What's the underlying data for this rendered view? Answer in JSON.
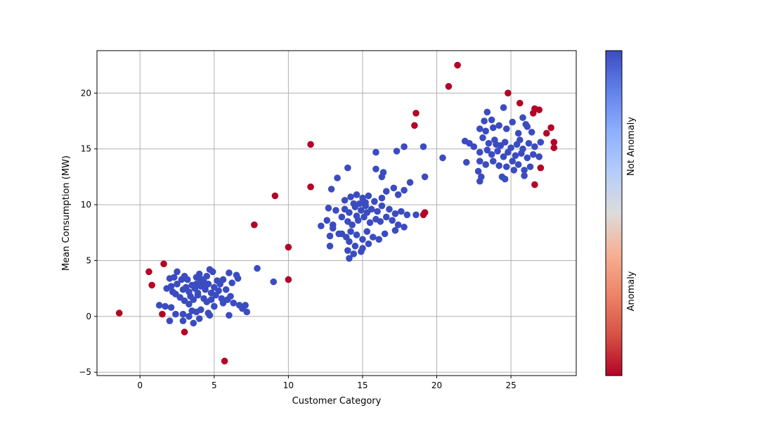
{
  "chart_data": {
    "type": "scatter",
    "xlabel": "Customer Category",
    "ylabel": "Mean Consumption (MW)",
    "xlim": [
      -2.9,
      29.4
    ],
    "ylim": [
      -5.3,
      23.8
    ],
    "xticks": [
      0,
      5,
      10,
      15,
      20,
      25
    ],
    "yticks": [
      -5,
      0,
      5,
      10,
      15,
      20
    ],
    "grid": true,
    "colorbar": {
      "colormap": "coolwarm",
      "position": "right",
      "labels": [
        {
          "text": "Anomaly",
          "value": 0.25
        },
        {
          "text": "Not Anomaly",
          "value": 0.75
        }
      ]
    },
    "colors": {
      "not_anomaly": "#3b4cc0",
      "anomaly": "#b40426"
    },
    "series": [
      {
        "label_value": "not_anomaly",
        "points": [
          [
            2.3,
            3.5
          ],
          [
            2.5,
            4.0
          ],
          [
            2.8,
            3.3
          ],
          [
            3.0,
            3.6
          ],
          [
            3.5,
            2.8
          ],
          [
            3.8,
            3.5
          ],
          [
            4.0,
            3.8
          ],
          [
            4.2,
            3.3
          ],
          [
            4.5,
            3.6
          ],
          [
            4.7,
            4.2
          ],
          [
            4.9,
            4.0
          ],
          [
            5.2,
            3.2
          ],
          [
            5.4,
            2.9
          ],
          [
            5.6,
            3.3
          ],
          [
            6.0,
            3.9
          ],
          [
            6.2,
            3.0
          ],
          [
            6.5,
            3.7
          ],
          [
            6.6,
            3.4
          ],
          [
            3.2,
            3.3
          ],
          [
            2.0,
            3.4
          ],
          [
            2.1,
            2.7
          ],
          [
            2.5,
            2.9
          ],
          [
            2.9,
            2.4
          ],
          [
            3.1,
            2.6
          ],
          [
            3.3,
            2.2
          ],
          [
            3.7,
            2.5
          ],
          [
            3.9,
            2.1
          ],
          [
            4.1,
            2.7
          ],
          [
            4.4,
            2.4
          ],
          [
            4.6,
            2.9
          ],
          [
            4.8,
            2.1
          ],
          [
            5.0,
            2.6
          ],
          [
            5.3,
            2.3
          ],
          [
            5.8,
            2.4
          ],
          [
            6.1,
            1.8
          ],
          [
            1.8,
            2.5
          ],
          [
            2.2,
            2.2
          ],
          [
            2.4,
            2.0
          ],
          [
            2.7,
            1.7
          ],
          [
            3.0,
            1.4
          ],
          [
            3.4,
            1.8
          ],
          [
            3.6,
            1.5
          ],
          [
            3.9,
            1.9
          ],
          [
            4.3,
            1.6
          ],
          [
            4.5,
            1.3
          ],
          [
            4.8,
            1.5
          ],
          [
            5.1,
            1.9
          ],
          [
            5.5,
            1.6
          ],
          [
            5.9,
            1.5
          ],
          [
            6.3,
            1.2
          ],
          [
            6.7,
            1.0
          ],
          [
            6.9,
            0.7
          ],
          [
            7.1,
            1.0
          ],
          [
            7.2,
            0.4
          ],
          [
            1.3,
            1.0
          ],
          [
            1.7,
            0.9
          ],
          [
            2.1,
            0.8
          ],
          [
            2.4,
            0.2
          ],
          [
            2.9,
            0.2
          ],
          [
            3.3,
            0.0
          ],
          [
            3.5,
            0.5
          ],
          [
            3.8,
            0.4
          ],
          [
            4.1,
            0.6
          ],
          [
            4.6,
            0.3
          ],
          [
            4.7,
            0.1
          ],
          [
            5.0,
            0.9
          ],
          [
            5.6,
            1.2
          ],
          [
            6.0,
            0.1
          ],
          [
            2.0,
            -0.4
          ],
          [
            2.9,
            -0.4
          ],
          [
            3.6,
            -0.6
          ],
          [
            4.0,
            -0.2
          ],
          [
            4.3,
            3.1
          ],
          [
            3.3,
            1.1
          ],
          [
            7.9,
            4.3
          ],
          [
            9.0,
            3.1
          ],
          [
            4.2,
            3.0
          ],
          [
            3.8,
            2.9
          ],
          [
            4.1,
            3.2
          ],
          [
            4.4,
            2.7
          ],
          [
            14.0,
            13.3
          ],
          [
            13.3,
            12.4
          ],
          [
            12.9,
            11.4
          ],
          [
            13.8,
            10.4
          ],
          [
            14.2,
            10.7
          ],
          [
            14.6,
            10.9
          ],
          [
            15.0,
            10.6
          ],
          [
            15.4,
            10.8
          ],
          [
            15.8,
            10.3
          ],
          [
            16.3,
            10.6
          ],
          [
            16.6,
            11.2
          ],
          [
            17.1,
            11.5
          ],
          [
            17.4,
            10.9
          ],
          [
            17.8,
            11.3
          ],
          [
            18.2,
            12.0
          ],
          [
            16.4,
            12.9
          ],
          [
            15.9,
            13.2
          ],
          [
            14.4,
            10.1
          ],
          [
            13.8,
            9.6
          ],
          [
            14.1,
            9.3
          ],
          [
            14.5,
            9.8
          ],
          [
            14.9,
            9.5
          ],
          [
            15.2,
            9.9
          ],
          [
            15.6,
            9.6
          ],
          [
            16.0,
            9.4
          ],
          [
            16.3,
            9.9
          ],
          [
            16.8,
            9.6
          ],
          [
            17.2,
            9.2
          ],
          [
            17.6,
            9.4
          ],
          [
            18.0,
            9.1
          ],
          [
            12.7,
            9.7
          ],
          [
            13.2,
            9.5
          ],
          [
            13.6,
            8.9
          ],
          [
            14.0,
            8.5
          ],
          [
            14.3,
            8.2
          ],
          [
            14.7,
            8.6
          ],
          [
            15.1,
            8.9
          ],
          [
            15.5,
            8.4
          ],
          [
            15.9,
            8.7
          ],
          [
            16.2,
            8.5
          ],
          [
            16.6,
            8.9
          ],
          [
            17.0,
            8.6
          ],
          [
            17.4,
            8.2
          ],
          [
            17.8,
            8.0
          ],
          [
            18.6,
            9.1
          ],
          [
            12.2,
            8.1
          ],
          [
            12.6,
            8.6
          ],
          [
            13.0,
            8.2
          ],
          [
            13.4,
            7.4
          ],
          [
            13.9,
            7.1
          ],
          [
            14.2,
            7.6
          ],
          [
            14.6,
            7.3
          ],
          [
            15.0,
            6.9
          ],
          [
            15.3,
            7.6
          ],
          [
            15.7,
            7.1
          ],
          [
            16.1,
            6.9
          ],
          [
            16.5,
            7.4
          ],
          [
            17.2,
            7.7
          ],
          [
            12.8,
            7.2
          ],
          [
            13.6,
            7.4
          ],
          [
            14.1,
            6.7
          ],
          [
            14.5,
            6.3
          ],
          [
            15.0,
            6.1
          ],
          [
            15.4,
            6.5
          ],
          [
            14.0,
            5.9
          ],
          [
            14.4,
            5.6
          ],
          [
            14.1,
            5.2
          ],
          [
            14.9,
            5.8
          ],
          [
            12.8,
            6.3
          ],
          [
            17.8,
            15.2
          ],
          [
            17.3,
            14.8
          ],
          [
            15.9,
            14.7
          ],
          [
            19.1,
            15.2
          ],
          [
            19.2,
            12.5
          ],
          [
            16.3,
            12.5
          ],
          [
            13.0,
            7.9
          ],
          [
            14.8,
            10.1
          ],
          [
            15.3,
            9.3
          ],
          [
            14.6,
            9.0
          ],
          [
            15.2,
            10.2
          ],
          [
            23.4,
            18.3
          ],
          [
            24.5,
            18.7
          ],
          [
            23.7,
            17.6
          ],
          [
            23.2,
            17.5
          ],
          [
            22.9,
            16.8
          ],
          [
            23.3,
            16.6
          ],
          [
            23.8,
            16.9
          ],
          [
            24.2,
            17.1
          ],
          [
            24.7,
            16.8
          ],
          [
            25.1,
            17.4
          ],
          [
            25.5,
            16.4
          ],
          [
            25.8,
            17.8
          ],
          [
            26.0,
            17.2
          ],
          [
            26.4,
            16.5
          ],
          [
            23.1,
            16.0
          ],
          [
            23.5,
            15.5
          ],
          [
            23.9,
            15.8
          ],
          [
            24.3,
            15.3
          ],
          [
            24.6,
            15.6
          ],
          [
            25.0,
            15.1
          ],
          [
            25.4,
            15.4
          ],
          [
            25.8,
            15.0
          ],
          [
            26.2,
            15.5
          ],
          [
            26.6,
            15.2
          ],
          [
            27.0,
            15.6
          ],
          [
            22.2,
            15.5
          ],
          [
            22.5,
            15.2
          ],
          [
            22.9,
            14.7
          ],
          [
            23.4,
            14.9
          ],
          [
            23.7,
            14.5
          ],
          [
            24.1,
            14.8
          ],
          [
            24.5,
            14.3
          ],
          [
            24.8,
            14.7
          ],
          [
            25.3,
            14.4
          ],
          [
            25.7,
            14.6
          ],
          [
            26.1,
            14.2
          ],
          [
            26.5,
            14.5
          ],
          [
            26.9,
            14.3
          ],
          [
            22.9,
            13.9
          ],
          [
            23.3,
            13.6
          ],
          [
            23.8,
            13.9
          ],
          [
            24.2,
            13.5
          ],
          [
            24.7,
            13.4
          ],
          [
            25.1,
            13.9
          ],
          [
            25.5,
            13.6
          ],
          [
            25.9,
            13.1
          ],
          [
            26.3,
            13.4
          ],
          [
            22.8,
            13.0
          ],
          [
            23.0,
            12.5
          ],
          [
            24.4,
            12.5
          ],
          [
            24.6,
            12.3
          ],
          [
            25.2,
            13.1
          ],
          [
            25.9,
            12.6
          ],
          [
            22.9,
            12.1
          ],
          [
            21.9,
            15.7
          ],
          [
            22.0,
            13.8
          ],
          [
            20.4,
            14.2
          ],
          [
            26.1,
            17.0
          ],
          [
            24.0,
            15.4
          ],
          [
            25.6,
            15.8
          ]
        ]
      },
      {
        "label_value": "anomaly",
        "points": [
          [
            -1.4,
            0.3
          ],
          [
            0.6,
            4.0
          ],
          [
            0.8,
            2.8
          ],
          [
            1.6,
            4.7
          ],
          [
            1.5,
            0.2
          ],
          [
            3.0,
            -1.4
          ],
          [
            5.7,
            -4.0
          ],
          [
            7.7,
            8.2
          ],
          [
            9.1,
            10.8
          ],
          [
            10.0,
            6.2
          ],
          [
            10.0,
            3.3
          ],
          [
            11.5,
            15.4
          ],
          [
            11.5,
            11.6
          ],
          [
            18.5,
            17.1
          ],
          [
            18.6,
            18.2
          ],
          [
            19.1,
            9.1
          ],
          [
            19.2,
            9.3
          ],
          [
            20.8,
            20.6
          ],
          [
            21.4,
            22.5
          ],
          [
            24.8,
            20.0
          ],
          [
            25.6,
            19.1
          ],
          [
            26.6,
            18.6
          ],
          [
            26.9,
            18.5
          ],
          [
            26.5,
            18.2
          ],
          [
            27.4,
            16.4
          ],
          [
            27.7,
            16.9
          ],
          [
            27.9,
            15.6
          ],
          [
            27.9,
            15.1
          ],
          [
            27.0,
            13.3
          ],
          [
            26.6,
            11.8
          ]
        ]
      }
    ]
  }
}
